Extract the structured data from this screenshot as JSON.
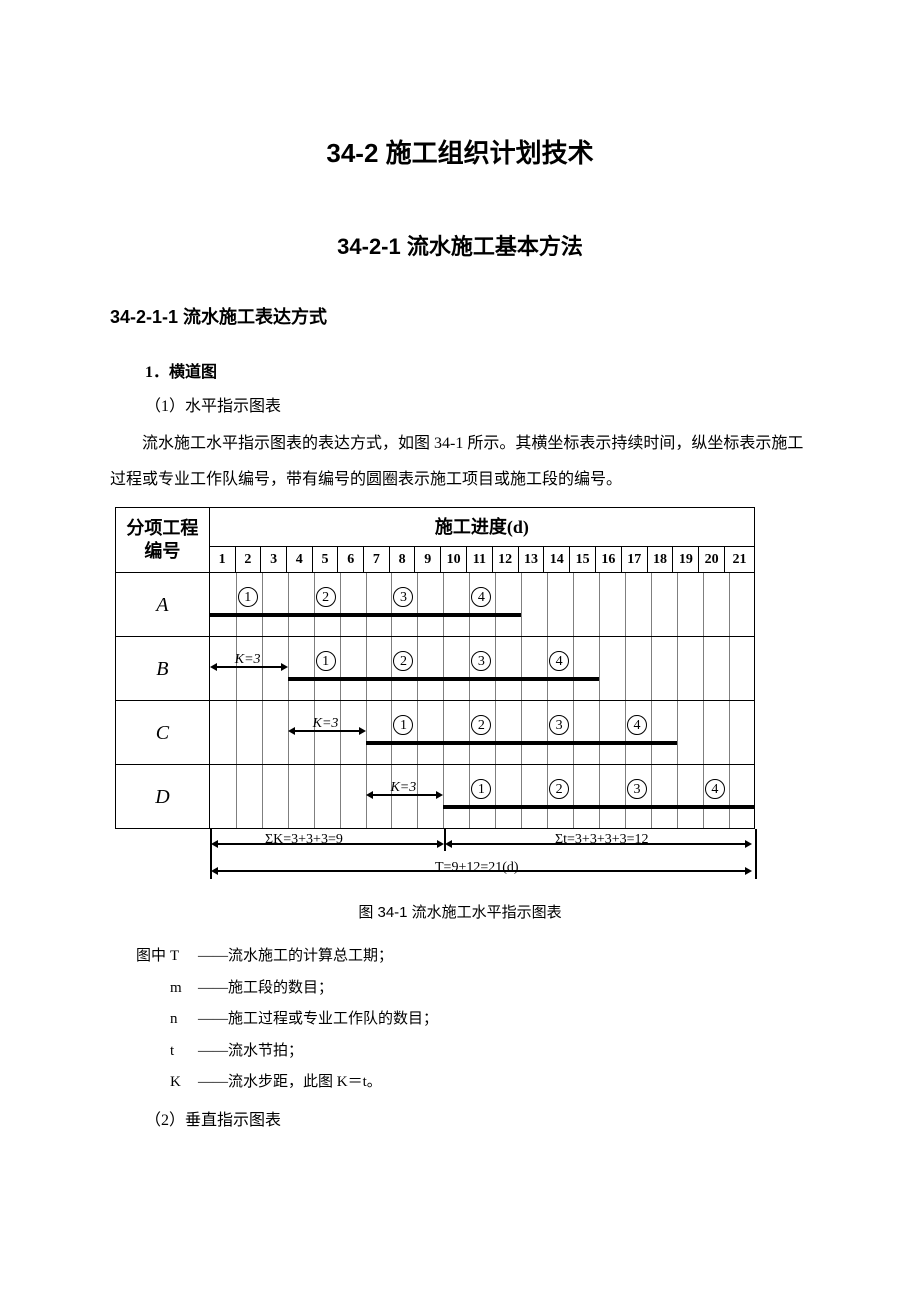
{
  "headings": {
    "main": "34-2  施工组织计划技术",
    "sub": "34-2-1  流水施工基本方法",
    "section": "34-2-1-1  流水施工表达方式",
    "h4_1": "1．横道图",
    "p1": "（1）水平指示图表",
    "body1": "流水施工水平指示图表的表达方式，如图 34-1 所示。其横坐标表示持续时间，纵坐标表示施工过程或专业工作队编号，带有编号的圆圈表示施工项目或施工段的编号。",
    "caption": "图 34-1  流水施工水平指示图表",
    "p2": "（2）垂直指示图表"
  },
  "legend": {
    "label": "图中",
    "items": [
      {
        "sym": "T",
        "def": "——流水施工的计算总工期；"
      },
      {
        "sym": "m",
        "def": "——施工段的数目；"
      },
      {
        "sym": "n",
        "def": "——施工过程或专业工作队的数目；"
      },
      {
        "sym": "t",
        "def": "——流水节拍；"
      },
      {
        "sym": "K",
        "def": "——流水步距，此图 K＝t。"
      }
    ]
  },
  "chart": {
    "row_header": "分项工程编号",
    "schedule_header": "施工进度(d)",
    "days": [
      "1",
      "2",
      "3",
      "4",
      "5",
      "6",
      "7",
      "8",
      "9",
      "10",
      "11",
      "12",
      "13",
      "14",
      "15",
      "16",
      "17",
      "18",
      "19",
      "20",
      "21"
    ],
    "rows": [
      "A",
      "B",
      "C",
      "D"
    ],
    "k_label": "K=3",
    "tasks": {
      "A": [
        {
          "start": 1,
          "end": 3,
          "n": "1"
        },
        {
          "start": 4,
          "end": 6,
          "n": "2"
        },
        {
          "start": 7,
          "end": 9,
          "n": "3"
        },
        {
          "start": 10,
          "end": 12,
          "n": "4"
        }
      ],
      "B": [
        {
          "start": 4,
          "end": 6,
          "n": "1"
        },
        {
          "start": 7,
          "end": 9,
          "n": "2"
        },
        {
          "start": 10,
          "end": 12,
          "n": "3"
        },
        {
          "start": 13,
          "end": 15,
          "n": "4"
        }
      ],
      "C": [
        {
          "start": 7,
          "end": 9,
          "n": "1"
        },
        {
          "start": 10,
          "end": 12,
          "n": "2"
        },
        {
          "start": 13,
          "end": 15,
          "n": "3"
        },
        {
          "start": 16,
          "end": 18,
          "n": "4"
        }
      ],
      "D": [
        {
          "start": 10,
          "end": 12,
          "n": "1"
        },
        {
          "start": 13,
          "end": 15,
          "n": "2"
        },
        {
          "start": 16,
          "end": 18,
          "n": "3"
        },
        {
          "start": 19,
          "end": 21,
          "n": "4"
        }
      ]
    },
    "k_arrows": {
      "B": {
        "start": 1,
        "end": 3
      },
      "C": {
        "start": 4,
        "end": 6
      },
      "D": {
        "start": 7,
        "end": 9
      }
    },
    "summary": {
      "sigmaK": "ΣK=3+3+3=9",
      "sigmaT": "Σt=3+3+3+3=12",
      "total": "T=9+12=21(d)"
    },
    "colors": {
      "border": "#000000",
      "bg": "#ffffff",
      "bar": "#000000"
    }
  }
}
